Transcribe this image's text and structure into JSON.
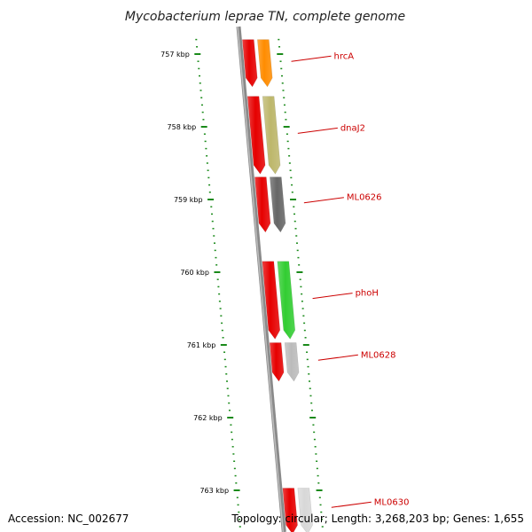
{
  "title": "Mycobacterium leprae TN, complete genome",
  "footer": {
    "accession": "Accession: NC_002677",
    "stats": "Topology: circular; Length: 3,268,203 bp; Genes: 1,655"
  },
  "colors": {
    "background": "#ffffff",
    "tick": "#1a8a1a",
    "backbone": "#8a8a8a",
    "cds_arrow": "#e60000",
    "label_text": "#cc0000",
    "leader": "#cc0000"
  },
  "scale": {
    "unit": "kbp",
    "ticks": [
      {
        "label": "757 kbp",
        "kbp": 757
      },
      {
        "label": "758 kbp",
        "kbp": 758
      },
      {
        "label": "759 kbp",
        "kbp": 759
      },
      {
        "label": "760 kbp",
        "kbp": 760
      },
      {
        "label": "761 kbp",
        "kbp": 761
      },
      {
        "label": "762 kbp",
        "kbp": 762
      },
      {
        "label": "763 kbp",
        "kbp": 763
      }
    ]
  },
  "genes": [
    {
      "name": "hrcA",
      "start_kbp": 756.8,
      "end_kbp": 757.45,
      "color": "#ff8c00"
    },
    {
      "name": "dnaJ2",
      "start_kbp": 757.58,
      "end_kbp": 758.65,
      "color": "#bdb76b"
    },
    {
      "name": "ML0626",
      "start_kbp": 758.69,
      "end_kbp": 759.45,
      "color": "#666666"
    },
    {
      "name": "phoH",
      "start_kbp": 759.85,
      "end_kbp": 760.92,
      "color": "#32cd32"
    },
    {
      "name": "ML0628",
      "start_kbp": 760.97,
      "end_kbp": 761.5,
      "color": "#bbbbbb"
    },
    {
      "name": "ML0630",
      "start_kbp": 762.97,
      "end_kbp": 763.6,
      "color": "#d8d8d8"
    }
  ]
}
